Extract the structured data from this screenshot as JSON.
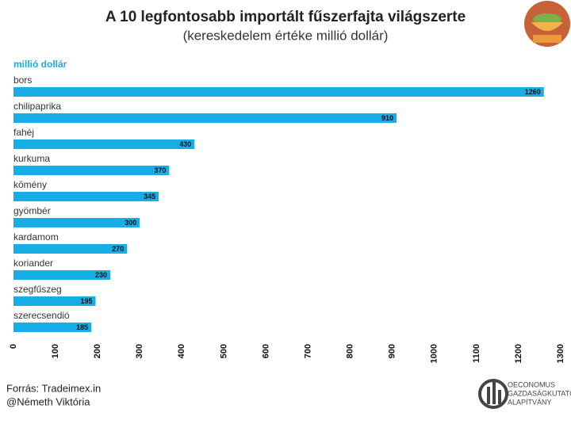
{
  "chart_data": {
    "type": "bar",
    "orientation": "horizontal",
    "title": "A 10 legfontosabb importált fűszerfajta világszerte",
    "subtitle": "(kereskedelem értéke millió dollár)",
    "y_axis_label": "millió dollár",
    "categories": [
      "bors",
      "chilipaprika",
      "fahéj",
      "kurkuma",
      "kömény",
      "gyömbér",
      "kardamom",
      "koriander",
      "szegfűszeg",
      "szerecsendió"
    ],
    "values": [
      1260,
      910,
      430,
      370,
      345,
      300,
      270,
      230,
      195,
      185
    ],
    "color": "#17aee8",
    "xlim": [
      0,
      1300
    ],
    "xticks": [
      0,
      100,
      200,
      300,
      400,
      500,
      600,
      700,
      800,
      900,
      1000,
      1100,
      1200,
      1300
    ],
    "grid": false
  },
  "footer": {
    "source": "Forrás: Tradeimex.in",
    "author": "@Németh Viktória"
  },
  "logo": [
    "OECONOMUS",
    "GAZDASÁGKUTATÓ",
    "ALAPÍTVÁNY"
  ]
}
